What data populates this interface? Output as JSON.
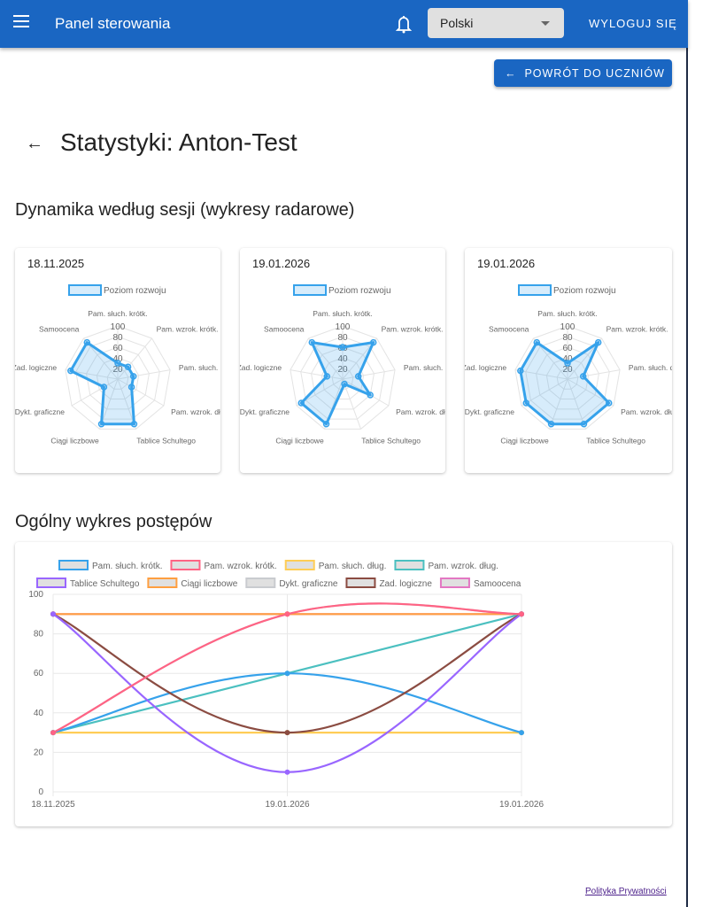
{
  "appbar": {
    "title": "Panel sterowania",
    "language": "Polski",
    "logout_label": "WYLOGUJ SIĘ",
    "menu_icon": "hamburger-icon",
    "bell_icon": "bell-icon"
  },
  "back_button": {
    "label": "POWRÓT DO UCZNIÓW",
    "icon": "arrow-left-icon"
  },
  "page_title": "Statystyki: Anton-Test",
  "radar_section_title": "Dynamika według sesji (wykresy radarowe)",
  "progress_section_title": "Ogólny wykres postępów",
  "footer": {
    "privacy_link": "Polityka Prywatności"
  },
  "colors": {
    "primary": "#1a66c2",
    "radar": "#36a2eb"
  },
  "chart_data": [
    {
      "type": "radar",
      "title": "18.11.2025",
      "legend": "Poziom rozwoju",
      "axes": [
        "Pam. słuch. krótk.",
        "Pam. wzrok. krótk.",
        "Pam. słuch. dług",
        "Pam. wzrok. dług",
        "Tablice Schultego",
        "Ciągi liczbowe",
        "Dykt. graficzne",
        "Zad. logiczne",
        "Samoocena"
      ],
      "ticks": [
        20,
        40,
        60,
        80,
        100
      ],
      "rlim": [
        0,
        100
      ],
      "values": [
        30,
        30,
        30,
        30,
        90,
        90,
        30,
        90,
        90
      ]
    },
    {
      "type": "radar",
      "title": "19.01.2026",
      "legend": "Poziom rozwoju",
      "axes": [
        "Pam. słuch. krótk.",
        "Pam. wzrok. krótk.",
        "Pam. słuch. dług",
        "Pam. wzrok. dług",
        "Tablice Schultego",
        "Ciągi liczbowe",
        "Dykt. graficzne",
        "Zad. logiczne",
        "Samoocena"
      ],
      "ticks": [
        20,
        40,
        60,
        80,
        100
      ],
      "rlim": [
        0,
        100
      ],
      "values": [
        60,
        90,
        30,
        60,
        10,
        90,
        90,
        30,
        90
      ]
    },
    {
      "type": "radar",
      "title": "19.01.2026",
      "legend": "Poziom rozwoju",
      "axes": [
        "Pam. słuch. krótk.",
        "Pam. wzrok. krótk.",
        "Pam. słuch. dług",
        "Pam. wzrok. dług",
        "Tablice Schultego",
        "Ciągi liczbowe",
        "Dykt. graficzne",
        "Zad. logiczne",
        "Samoocena"
      ],
      "ticks": [
        20,
        40,
        60,
        80,
        100
      ],
      "rlim": [
        0,
        100
      ],
      "values": [
        30,
        90,
        30,
        90,
        90,
        90,
        90,
        90,
        90
      ]
    },
    {
      "type": "line",
      "categories": [
        "18.11.2025",
        "19.01.2026",
        "19.01.2026"
      ],
      "ylim": [
        0,
        100
      ],
      "yticks": [
        0,
        20,
        40,
        60,
        80,
        100
      ],
      "grid": true,
      "legend": "top",
      "series": [
        {
          "name": "Pam. słuch. krótk.",
          "color": "#36a2eb",
          "values": [
            30,
            60,
            30
          ]
        },
        {
          "name": "Pam. wzrok. krótk.",
          "color": "#ff6384",
          "values": [
            30,
            90,
            90
          ]
        },
        {
          "name": "Pam. słuch. dług.",
          "color": "#ffcd56",
          "values": [
            30,
            30,
            30
          ]
        },
        {
          "name": "Pam. wzrok. dług.",
          "color": "#4bc0c0",
          "values": [
            30,
            60,
            90
          ]
        },
        {
          "name": "Tablice Schultego",
          "color": "#9966ff",
          "values": [
            90,
            10,
            90
          ]
        },
        {
          "name": "Ciągi liczbowe",
          "color": "#ff9f40",
          "values": [
            90,
            90,
            90
          ]
        },
        {
          "name": "Dykt. graficzne",
          "color": "#c9cbcf",
          "values": [
            30,
            90,
            90
          ]
        },
        {
          "name": "Zad. logiczne",
          "color": "#8b4c42",
          "values": [
            90,
            30,
            90
          ]
        },
        {
          "name": "Samoocena",
          "color": "#e377c2",
          "values": [
            90,
            90,
            90
          ]
        }
      ]
    }
  ]
}
